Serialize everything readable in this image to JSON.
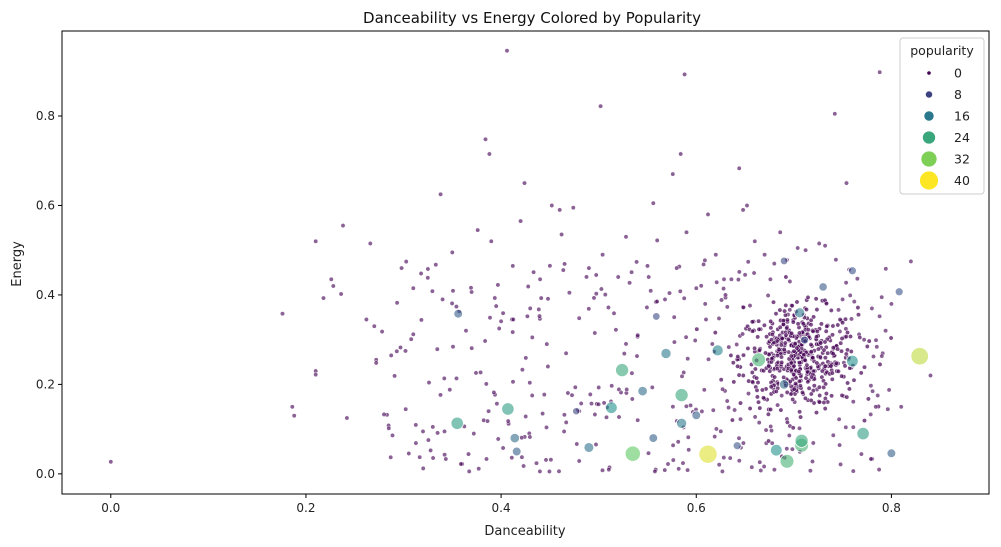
{
  "chart_data": {
    "type": "scatter",
    "title": "Danceability vs Energy Colored by Popularity",
    "xlabel": "Danceability",
    "ylabel": "Energy",
    "xlim": [
      -0.05,
      0.9
    ],
    "ylim": [
      -0.045,
      0.99
    ],
    "xticks": [
      "0.0",
      "0.2",
      "0.4",
      "0.6",
      "0.8"
    ],
    "yticks": [
      "0.0",
      "0.2",
      "0.4",
      "0.6",
      "0.8"
    ],
    "grid": false,
    "hue": "popularity",
    "size": "popularity",
    "legend": {
      "title": "popularity",
      "placement": "top-right",
      "entries": [
        {
          "label": "0",
          "value": 0
        },
        {
          "label": "8",
          "value": 8
        },
        {
          "label": "16",
          "value": 16
        },
        {
          "label": "24",
          "value": 24
        },
        {
          "label": "32",
          "value": 32
        },
        {
          "label": "40",
          "value": 40
        }
      ]
    },
    "highlighted_points": [
      {
        "x": 0.356,
        "y": 0.358,
        "popularity": 12
      },
      {
        "x": 0.355,
        "y": 0.113,
        "popularity": 22
      },
      {
        "x": 0.407,
        "y": 0.145,
        "popularity": 22
      },
      {
        "x": 0.414,
        "y": 0.08,
        "popularity": 14
      },
      {
        "x": 0.416,
        "y": 0.05,
        "popularity": 12
      },
      {
        "x": 0.477,
        "y": 0.14,
        "popularity": 8
      },
      {
        "x": 0.49,
        "y": 0.059,
        "popularity": 15
      },
      {
        "x": 0.513,
        "y": 0.148,
        "popularity": 20
      },
      {
        "x": 0.524,
        "y": 0.232,
        "popularity": 24
      },
      {
        "x": 0.535,
        "y": 0.045,
        "popularity": 30
      },
      {
        "x": 0.545,
        "y": 0.185,
        "popularity": 14
      },
      {
        "x": 0.556,
        "y": 0.08,
        "popularity": 12
      },
      {
        "x": 0.559,
        "y": 0.352,
        "popularity": 9
      },
      {
        "x": 0.569,
        "y": 0.269,
        "popularity": 16
      },
      {
        "x": 0.585,
        "y": 0.176,
        "popularity": 24
      },
      {
        "x": 0.585,
        "y": 0.113,
        "popularity": 16
      },
      {
        "x": 0.612,
        "y": 0.044,
        "popularity": 38
      },
      {
        "x": 0.622,
        "y": 0.276,
        "popularity": 18
      },
      {
        "x": 0.664,
        "y": 0.255,
        "popularity": 26
      },
      {
        "x": 0.682,
        "y": 0.053,
        "popularity": 20
      },
      {
        "x": 0.693,
        "y": 0.028,
        "popularity": 26
      },
      {
        "x": 0.706,
        "y": 0.36,
        "popularity": 16
      },
      {
        "x": 0.708,
        "y": 0.064,
        "popularity": 26
      },
      {
        "x": 0.708,
        "y": 0.074,
        "popularity": 24
      },
      {
        "x": 0.711,
        "y": 0.299,
        "popularity": 10
      },
      {
        "x": 0.76,
        "y": 0.252,
        "popularity": 20
      },
      {
        "x": 0.771,
        "y": 0.09,
        "popularity": 22
      },
      {
        "x": 0.8,
        "y": 0.046,
        "popularity": 12
      },
      {
        "x": 0.808,
        "y": 0.407,
        "popularity": 10
      },
      {
        "x": 0.829,
        "y": 0.263,
        "popularity": 36
      },
      {
        "x": 0.69,
        "y": 0.476,
        "popularity": 9
      },
      {
        "x": 0.73,
        "y": 0.418,
        "popularity": 11
      },
      {
        "x": 0.76,
        "y": 0.454,
        "popularity": 10
      },
      {
        "x": 0.642,
        "y": 0.063,
        "popularity": 10
      },
      {
        "x": 0.6,
        "y": 0.131,
        "popularity": 12
      },
      {
        "x": 0.69,
        "y": 0.2,
        "popularity": 14
      }
    ],
    "base_points": [
      [
        0.0,
        0.027
      ],
      [
        0.176,
        0.358
      ],
      [
        0.186,
        0.15
      ],
      [
        0.188,
        0.13
      ],
      [
        0.21,
        0.52
      ],
      [
        0.21,
        0.23
      ],
      [
        0.21,
        0.222
      ],
      [
        0.218,
        0.393
      ],
      [
        0.226,
        0.435
      ],
      [
        0.228,
        0.42
      ],
      [
        0.236,
        0.402
      ],
      [
        0.238,
        0.555
      ],
      [
        0.242,
        0.125
      ],
      [
        0.262,
        0.345
      ],
      [
        0.266,
        0.515
      ],
      [
        0.27,
        0.33
      ],
      [
        0.272,
        0.255
      ],
      [
        0.272,
        0.248
      ],
      [
        0.278,
        0.318
      ],
      [
        0.28,
        0.133
      ],
      [
        0.298,
        0.46
      ],
      [
        0.302,
        0.275
      ],
      [
        0.31,
        0.415
      ],
      [
        0.31,
        0.312
      ],
      [
        0.318,
        0.448
      ],
      [
        0.32,
        0.095
      ],
      [
        0.325,
        0.458
      ],
      [
        0.33,
        0.105
      ],
      [
        0.338,
        0.625
      ],
      [
        0.34,
        0.39
      ],
      [
        0.342,
        0.095
      ],
      [
        0.35,
        0.495
      ],
      [
        0.364,
        0.32
      ],
      [
        0.372,
        0.09
      ],
      [
        0.376,
        0.545
      ],
      [
        0.384,
        0.748
      ],
      [
        0.388,
        0.715
      ],
      [
        0.39,
        0.52
      ],
      [
        0.395,
        0.375
      ],
      [
        0.398,
        0.325
      ],
      [
        0.406,
        0.946
      ],
      [
        0.412,
        0.465
      ],
      [
        0.42,
        0.565
      ],
      [
        0.424,
        0.65
      ],
      [
        0.432,
        0.305
      ],
      [
        0.44,
        0.435
      ],
      [
        0.448,
        0.24
      ],
      [
        0.452,
        0.6
      ],
      [
        0.46,
        0.59
      ],
      [
        0.462,
        0.535
      ],
      [
        0.47,
        0.405
      ],
      [
        0.474,
        0.595
      ],
      [
        0.48,
        0.348
      ],
      [
        0.48,
        0.14
      ],
      [
        0.49,
        0.46
      ],
      [
        0.496,
        0.315
      ],
      [
        0.5,
        0.193
      ],
      [
        0.502,
        0.822
      ],
      [
        0.504,
        0.49
      ],
      [
        0.51,
        0.372
      ],
      [
        0.52,
        0.44
      ],
      [
        0.528,
        0.53
      ],
      [
        0.534,
        0.225
      ],
      [
        0.54,
        0.31
      ],
      [
        0.54,
        0.12
      ],
      [
        0.55,
        0.465
      ],
      [
        0.556,
        0.605
      ],
      [
        0.56,
        0.522
      ],
      [
        0.568,
        0.39
      ],
      [
        0.576,
        0.67
      ],
      [
        0.58,
        0.46
      ],
      [
        0.584,
        0.715
      ],
      [
        0.588,
        0.893
      ],
      [
        0.59,
        0.54
      ],
      [
        0.6,
        0.415
      ],
      [
        0.61,
        0.345
      ],
      [
        0.612,
        0.58
      ],
      [
        0.62,
        0.49
      ],
      [
        0.63,
        0.4
      ],
      [
        0.636,
        0.435
      ],
      [
        0.644,
        0.683
      ],
      [
        0.648,
        0.59
      ],
      [
        0.652,
        0.6
      ],
      [
        0.65,
        0.445
      ],
      [
        0.66,
        0.52
      ],
      [
        0.67,
        0.49
      ],
      [
        0.676,
        0.435
      ],
      [
        0.68,
        0.47
      ],
      [
        0.686,
        0.54
      ],
      [
        0.696,
        0.43
      ],
      [
        0.704,
        0.505
      ],
      [
        0.712,
        0.5
      ],
      [
        0.726,
        0.515
      ],
      [
        0.732,
        0.51
      ],
      [
        0.742,
        0.805
      ],
      [
        0.75,
        0.39
      ],
      [
        0.754,
        0.65
      ],
      [
        0.762,
        0.385
      ],
      [
        0.772,
        0.3
      ],
      [
        0.78,
        0.37
      ],
      [
        0.784,
        0.15
      ],
      [
        0.788,
        0.898
      ],
      [
        0.79,
        0.395
      ],
      [
        0.794,
        0.32
      ],
      [
        0.8,
        0.38
      ],
      [
        0.81,
        0.15
      ],
      [
        0.82,
        0.475
      ],
      [
        0.84,
        0.22
      ]
    ],
    "points_note": "",
    "dense_cluster": {
      "x": 0.705,
      "y": 0.26,
      "sx": 0.03,
      "sy": 0.055,
      "count": 520
    },
    "scatter_cloud": {
      "xmin": 0.28,
      "xmax": 0.8,
      "ymin": 0.005,
      "ymax": 0.48,
      "count": 320
    },
    "colors": {
      "0": "#440154",
      "8": "#3b528b",
      "16": "#21918c",
      "24": "#1fa188",
      "32": "#5ec962",
      "40": "#fde725"
    }
  }
}
